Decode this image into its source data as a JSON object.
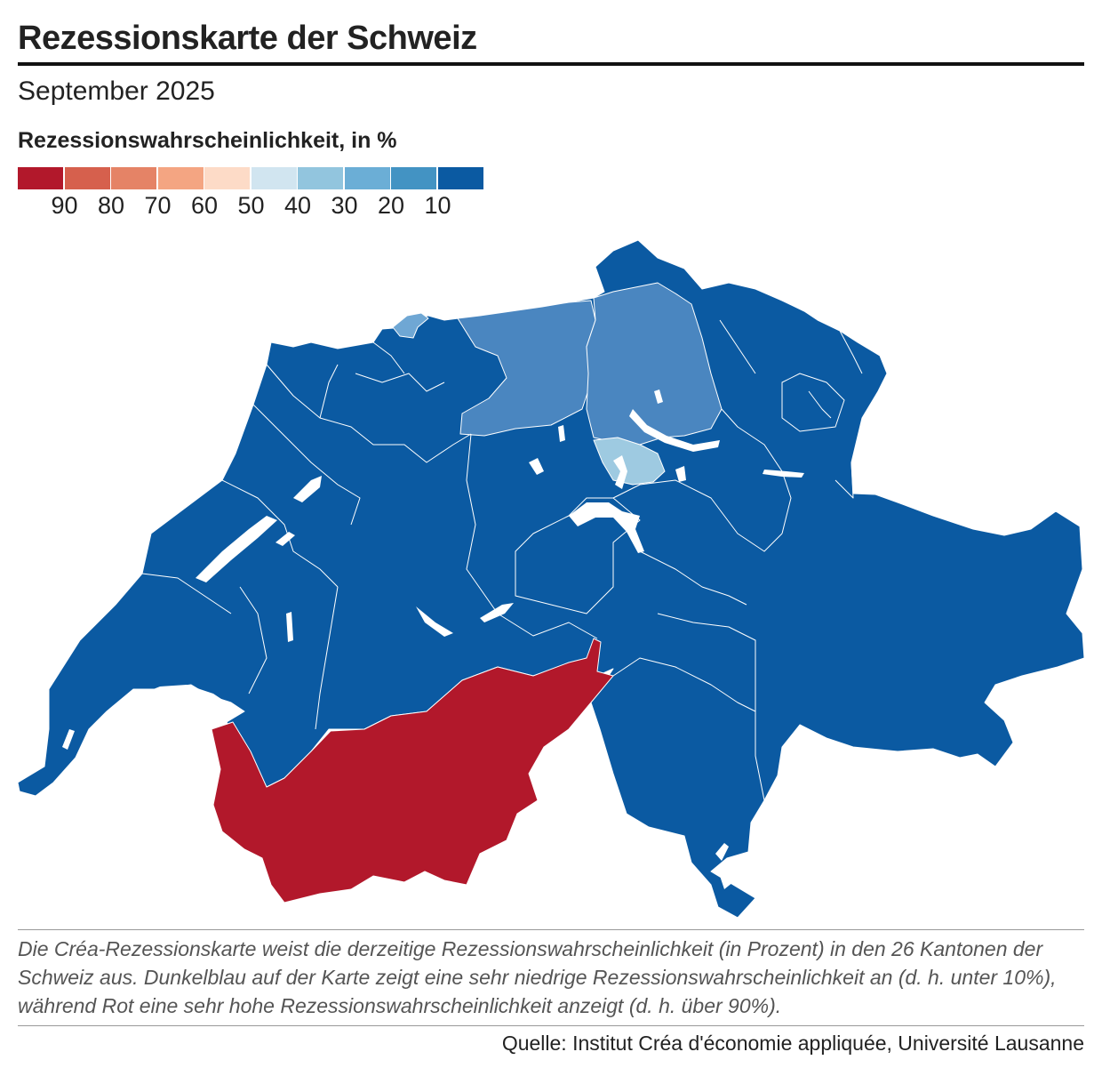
{
  "title": "Rezessionskarte der Schweiz",
  "subtitle": "September 2025",
  "legend": {
    "title": "Rezessionswahrscheinlichkeit, in %",
    "colors": [
      "#b2182b",
      "#d6604d",
      "#e58366",
      "#f4a582",
      "#fddbc7",
      "#d1e5f0",
      "#92c5de",
      "#6baed6",
      "#4393c3",
      "#0b5aa2"
    ],
    "ticks": [
      "90",
      "80",
      "70",
      "60",
      "50",
      "40",
      "30",
      "20",
      "10"
    ]
  },
  "map": {
    "regions": [
      {
        "region": "Wallis",
        "class": "90+",
        "color": "#b2182b"
      },
      {
        "region": "Zürich",
        "class": "20-30",
        "color": "#4a86c0"
      },
      {
        "region": "Aargau",
        "class": "20-30",
        "color": "#4a86c0"
      },
      {
        "region": "Basel-Stadt",
        "class": "30-40",
        "color": "#6fa7d4"
      },
      {
        "region": "Zug",
        "class": "30-40",
        "color": "#9ecae1"
      },
      {
        "region": "übrige Kantone",
        "class": "<10",
        "color": "#0b5aa2"
      }
    ],
    "lake_color": "#ffffff",
    "border_color": "#ffffff"
  },
  "description": "Die Créa-Rezessionskarte weist die derzeitige Rezessionswahrscheinlichkeit (in Prozent) in den 26 Kantonen der Schweiz aus. Dunkelblau auf der Karte zeigt eine sehr niedrige Rezessionswahrscheinlichkeit an (d. h. unter 10%), während Rot eine sehr hohe Rezessionswahrscheinlichkeit anzeigt (d. h. über 90%).",
  "source": "Quelle: Institut Créa d'économie appliquée, Université Lausanne"
}
